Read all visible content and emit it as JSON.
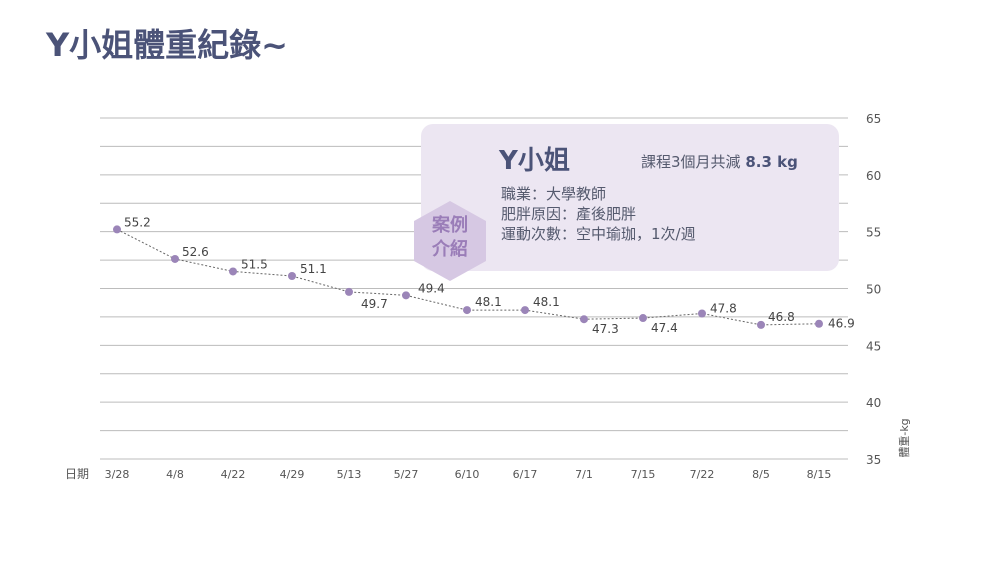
{
  "title": "Y小姐體重紀錄~",
  "card": {
    "badge_line1": "案例",
    "badge_line2": "介紹",
    "name": "Y小姐",
    "summary_prefix": "課程3個月共減",
    "summary_value": "8.3 kg",
    "lines": [
      "職業：大學教師",
      "肥胖原因：產後肥胖",
      "運動次數：空中瑜珈，1次/週"
    ]
  },
  "colors": {
    "title": "#4b5378",
    "point": "#9b85b8",
    "grid": "#bcbcbc",
    "card": "#ece6f2"
  },
  "chart_data": {
    "type": "line",
    "title": "Y小姐體重紀錄~",
    "xlabel": "日期",
    "ylabel": "體重-kg",
    "categories": [
      "3/28",
      "4/8",
      "4/22",
      "4/29",
      "5/13",
      "5/27",
      "6/10",
      "6/17",
      "7/1",
      "7/15",
      "7/22",
      "8/5",
      "8/15"
    ],
    "values": [
      55.2,
      52.6,
      51.5,
      51.1,
      49.7,
      49.4,
      48.1,
      48.1,
      47.3,
      47.4,
      47.8,
      46.8,
      46.9
    ],
    "ylim": [
      35,
      65
    ],
    "yticks": [
      35,
      40,
      45,
      50,
      55,
      60,
      65
    ],
    "grid": true,
    "y_axis_position": "right"
  }
}
